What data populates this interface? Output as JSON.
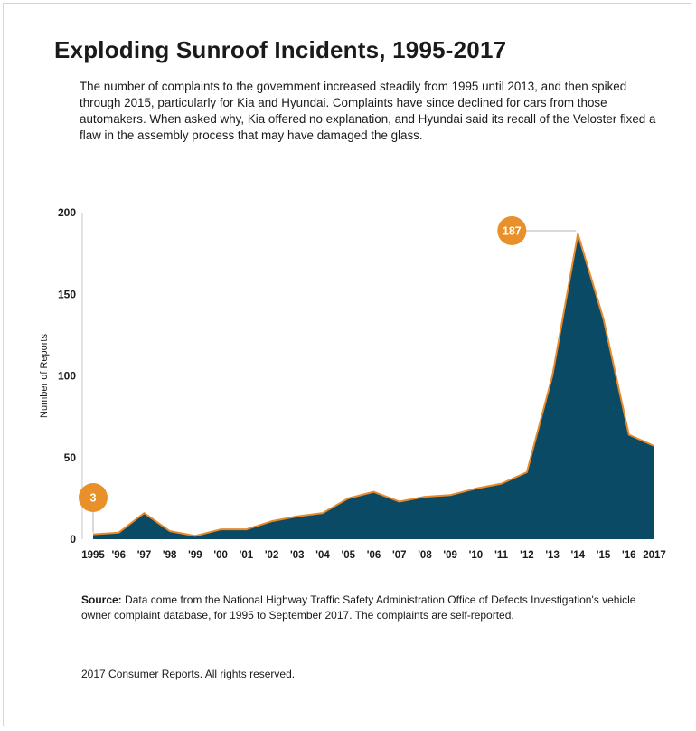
{
  "header": {
    "title": "Exploding Sunroof Incidents, 1995-2017",
    "subtitle": "The number of complaints to the government increased steadily from 1995 until 2013, and then spiked through 2015, particularly for Kia and Hyundai. Complaints have since declined for cars from those automakers. When asked why, Kia offered no explanation, and Hyundai said its recall of the Veloster fixed a flaw in the assembly process that may have damaged the glass."
  },
  "chart_data": {
    "type": "area",
    "x": [
      "1995",
      "'96",
      "'97",
      "'98",
      "'99",
      "'00",
      "'01",
      "'02",
      "'03",
      "'04",
      "'05",
      "'06",
      "'07",
      "'08",
      "'09",
      "'10",
      "'11",
      "'12",
      "'13",
      "'14",
      "'15",
      "'16",
      "2017"
    ],
    "values": [
      3,
      4,
      16,
      5,
      2,
      6,
      6,
      11,
      14,
      16,
      25,
      29,
      23,
      26,
      27,
      31,
      34,
      41,
      100,
      187,
      135,
      64,
      57
    ],
    "ylabel": "Number of Reports",
    "yticks": [
      0,
      50,
      100,
      150,
      200
    ],
    "ylim": [
      0,
      200
    ],
    "grid": false,
    "colors": {
      "fill": "#0b4a64",
      "line": "#e8892b",
      "marker": "#e8902a"
    },
    "annotations": [
      {
        "index": 0,
        "text": "3"
      },
      {
        "index": 19,
        "text": "187"
      }
    ]
  },
  "footer": {
    "source_label": "Source:",
    "source_text": " Data come from the National Highway Traffic Safety Administration Office of Defects Investigation's vehicle owner complaint database, for 1995 to September 2017. The complaints are self-reported.",
    "copyright": "2017 Consumer Reports. All rights reserved."
  }
}
